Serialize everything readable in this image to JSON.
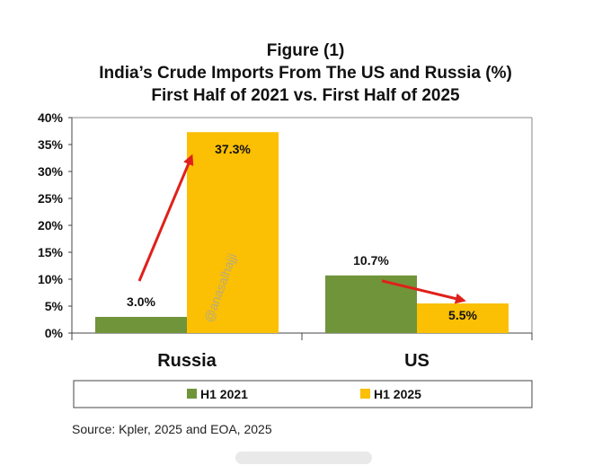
{
  "figure_label": "Figure (1)",
  "title": "India’s Crude Imports From The US and Russia (%)",
  "subtitle": "First Half of 2021 vs. First Half of 2025",
  "watermark": "@anasalhajji",
  "source": "Source: Kpler, 2025 and EOA, 2025",
  "colors": {
    "h1_2021": "#70943a",
    "h1_2025": "#fbbf04",
    "arrow": "#e0201b"
  },
  "chart_data": {
    "type": "bar",
    "categories": [
      "Russia",
      "US"
    ],
    "series": [
      {
        "name": "H1 2021",
        "values": [
          3.0,
          10.7
        ],
        "labels": [
          "3.0%",
          "10.7%"
        ]
      },
      {
        "name": "H1 2025",
        "values": [
          37.3,
          5.5
        ],
        "labels": [
          "37.3%",
          "5.5%"
        ]
      }
    ],
    "ylim": [
      0,
      40
    ],
    "yticks": [
      "0%",
      "5%",
      "10%",
      "15%",
      "20%",
      "25%",
      "30%",
      "35%",
      "40%"
    ],
    "grid": false,
    "legend": "bottom",
    "annotations": [
      "arrow up from Russia H1 2021 to H1 2025",
      "arrow down from US H1 2021 to H1 2025"
    ]
  }
}
